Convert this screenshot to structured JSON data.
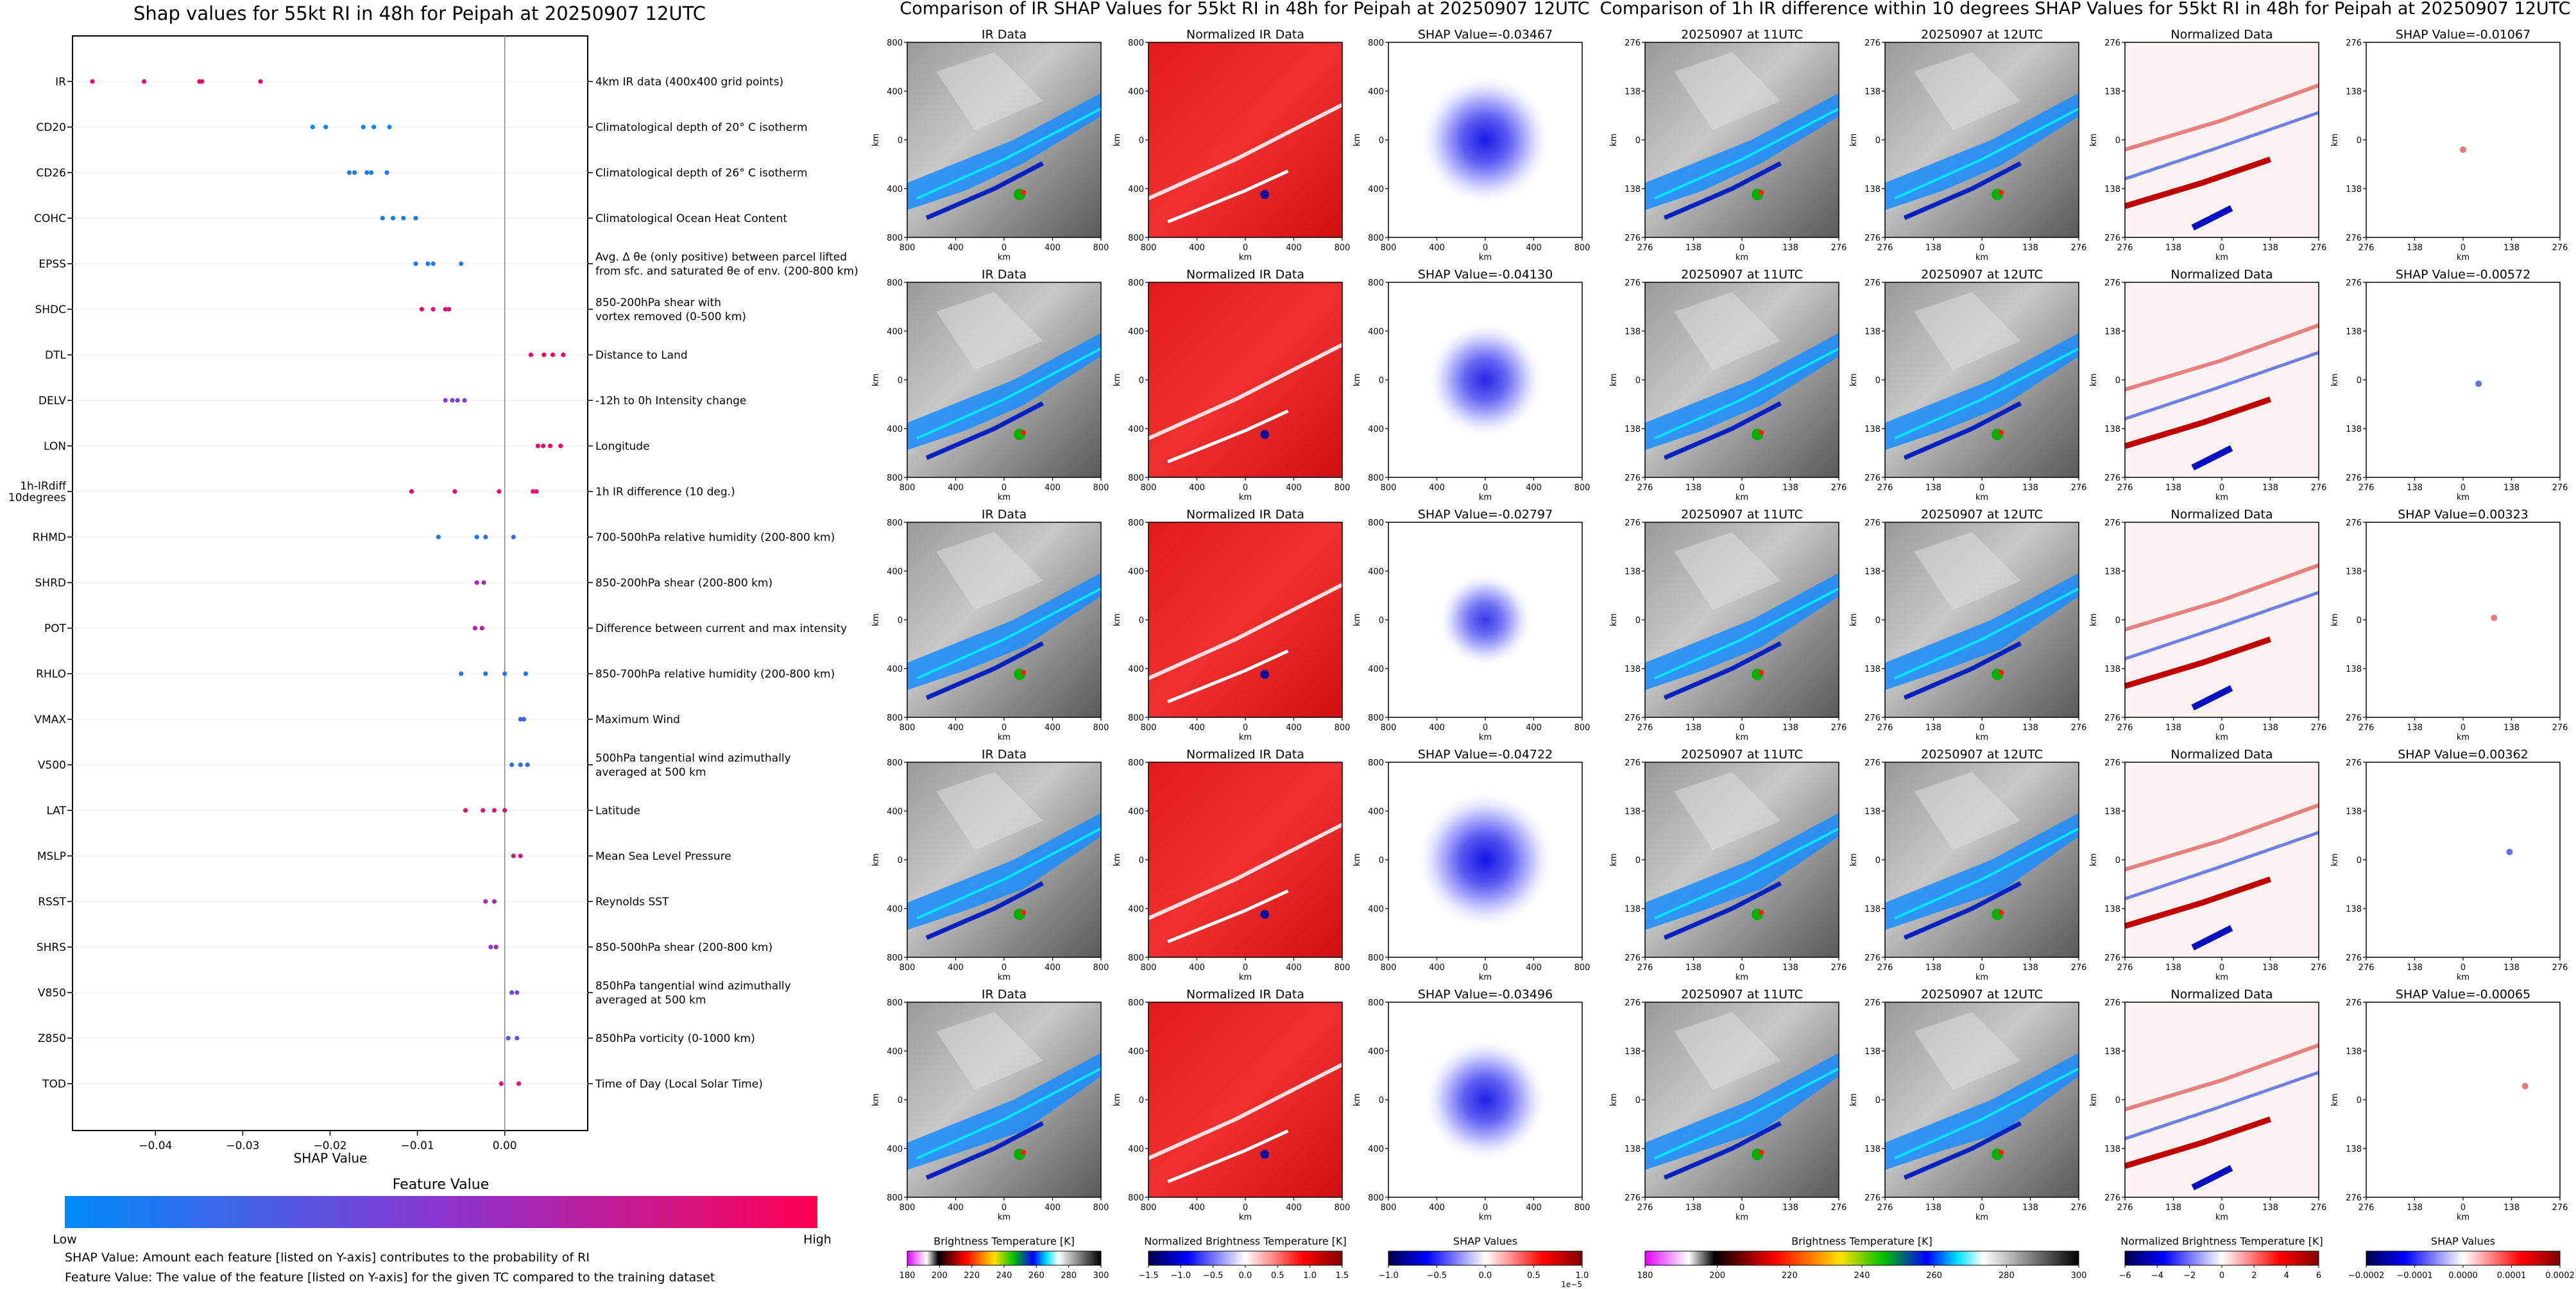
{
  "shap_summary": {
    "title": "Shap values for 55kt RI in 48h for Peipah at 20250907 12UTC",
    "xlabel": "SHAP Value",
    "colorbar_title": "Feature Value",
    "colorbar_low": "Low",
    "colorbar_high": "High",
    "note1": "SHAP Value: Amount each feature [listed on Y-axis] contributes to the probability of RI",
    "note2": "Feature Value: The value of the feature [listed on Y-axis] for the given TC compared to the training dataset",
    "features": [
      {
        "name": "IR",
        "desc": "4km IR data (400x400 grid points)"
      },
      {
        "name": "CD20",
        "desc": "Climatological depth of 20° C isotherm"
      },
      {
        "name": "CD26",
        "desc": "Climatological depth of 26° C isotherm"
      },
      {
        "name": "COHC",
        "desc": "Climatological Ocean Heat Content"
      },
      {
        "name": "EPSS",
        "desc": "Avg. Δ θe (only positive) between parcel lifted|from sfc. and saturated θe of env. (200-800 km)"
      },
      {
        "name": "SHDC",
        "desc": "850-200hPa shear with|vortex removed (0-500 km)"
      },
      {
        "name": "DTL",
        "desc": "Distance to Land"
      },
      {
        "name": "DELV",
        "desc": "-12h to 0h Intensity change"
      },
      {
        "name": "LON",
        "desc": "Longitude"
      },
      {
        "name": "1h-IRdiff|10degrees",
        "desc": "1h IR difference (10 deg.)"
      },
      {
        "name": "RHMD",
        "desc": "700-500hPa relative humidity (200-800 km)"
      },
      {
        "name": "SHRD",
        "desc": "850-200hPa shear (200-800 km)"
      },
      {
        "name": "POT",
        "desc": "Difference between current and max intensity"
      },
      {
        "name": "RHLO",
        "desc": "850-700hPa relative humidity (200-800 km)"
      },
      {
        "name": "VMAX",
        "desc": "Maximum Wind"
      },
      {
        "name": "V500",
        "desc": "500hPa tangential wind azimuthally|averaged at 500 km"
      },
      {
        "name": "LAT",
        "desc": "Latitude"
      },
      {
        "name": "MSLP",
        "desc": "Mean Sea Level Pressure"
      },
      {
        "name": "RSST",
        "desc": "Reynolds SST"
      },
      {
        "name": "SHRS",
        "desc": "850-500hPa shear (200-800 km)"
      },
      {
        "name": "V850",
        "desc": "850hPa tangential wind azimuthally|averaged at 500 km"
      },
      {
        "name": "Z850",
        "desc": "850hPa vorticity (0-1000 km)"
      },
      {
        "name": "TOD",
        "desc": "Time of Day (Local Solar Time)"
      }
    ],
    "xticks": [
      "−0.04",
      "−0.03",
      "−0.02",
      "−0.01",
      "0.00"
    ]
  },
  "chart_data": {
    "type": "scatter",
    "title": "Shap values for 55kt RI in 48h for Peipah at 20250907 12UTC",
    "xlabel": "SHAP Value",
    "xlim": [
      -0.0495,
      0.0095
    ],
    "colormap_low": "#008afb",
    "colormap_mid": "#8a35d0",
    "colormap_high": "#ff0052",
    "points": [
      {
        "feature": "IR",
        "shap": [
          -0.04722,
          -0.0413,
          -0.03496,
          -0.03467,
          -0.02797
        ],
        "feature_value": [
          0.92,
          0.9,
          0.95,
          0.93,
          0.91
        ]
      },
      {
        "feature": "CD20",
        "shap": [
          -0.022,
          -0.0205,
          -0.0162,
          -0.015,
          -0.0132
        ],
        "feature_value": [
          0.05,
          0.05,
          0.05,
          0.05,
          0.05
        ]
      },
      {
        "feature": "CD26",
        "shap": [
          -0.0178,
          -0.0172,
          -0.0158,
          -0.0153,
          -0.0135
        ],
        "feature_value": [
          0.1,
          0.1,
          0.1,
          0.1,
          0.1
        ]
      },
      {
        "feature": "COHC",
        "shap": [
          -0.014,
          -0.0128,
          -0.0116,
          -0.0102
        ],
        "feature_value": [
          0.08,
          0.08,
          0.08,
          0.08
        ]
      },
      {
        "feature": "EPSS",
        "shap": [
          -0.0102,
          -0.0088,
          -0.0082,
          -0.005
        ],
        "feature_value": [
          0.1,
          0.1,
          0.1,
          0.1
        ]
      },
      {
        "feature": "SHDC",
        "shap": [
          -0.0095,
          -0.0082,
          -0.0068,
          -0.0064
        ],
        "feature_value": [
          0.85,
          0.85,
          0.85,
          0.85
        ]
      },
      {
        "feature": "DTL",
        "shap": [
          0.003,
          0.0045,
          0.0055,
          0.0067
        ],
        "feature_value": [
          0.93,
          0.93,
          0.93,
          0.93
        ]
      },
      {
        "feature": "DELV",
        "shap": [
          -0.0068,
          -0.006,
          -0.0054,
          -0.0046
        ],
        "feature_value": [
          0.45,
          0.45,
          0.45,
          0.45
        ]
      },
      {
        "feature": "LON",
        "shap": [
          0.0038,
          0.0044,
          0.0052,
          0.0064
        ],
        "feature_value": [
          0.95,
          0.95,
          0.95,
          0.95
        ]
      },
      {
        "feature": "1h-IRdiff 10degrees",
        "shap": [
          -0.01067,
          -0.00572,
          -0.00065,
          0.00323,
          0.00362
        ],
        "feature_value": [
          0.88,
          0.88,
          0.88,
          0.88,
          0.88
        ]
      },
      {
        "feature": "RHMD",
        "shap": [
          -0.0076,
          -0.0032,
          -0.0022,
          0.001
        ],
        "feature_value": [
          0.15,
          0.15,
          0.15,
          0.15
        ]
      },
      {
        "feature": "SHRD",
        "shap": [
          -0.0032,
          -0.0024
        ],
        "feature_value": [
          0.6,
          0.6
        ]
      },
      {
        "feature": "POT",
        "shap": [
          -0.0034,
          -0.0026
        ],
        "feature_value": [
          0.7,
          0.7
        ]
      },
      {
        "feature": "RHLO",
        "shap": [
          -0.005,
          -0.0022,
          0.0,
          0.0024
        ],
        "feature_value": [
          0.15,
          0.15,
          0.15,
          0.15
        ]
      },
      {
        "feature": "VMAX",
        "shap": [
          0.0018,
          0.0022
        ],
        "feature_value": [
          0.25,
          0.25
        ]
      },
      {
        "feature": "V500",
        "shap": [
          0.0008,
          0.0018,
          0.0026
        ],
        "feature_value": [
          0.2,
          0.2,
          0.2
        ]
      },
      {
        "feature": "LAT",
        "shap": [
          -0.0045,
          -0.0025,
          -0.0012,
          0.0
        ],
        "feature_value": [
          0.85,
          0.85,
          0.85,
          0.85
        ]
      },
      {
        "feature": "MSLP",
        "shap": [
          0.001,
          0.0018
        ],
        "feature_value": [
          0.8,
          0.8
        ]
      },
      {
        "feature": "RSST",
        "shap": [
          -0.0022,
          -0.0012
        ],
        "feature_value": [
          0.65,
          0.65
        ]
      },
      {
        "feature": "SHRS",
        "shap": [
          -0.0016,
          -0.001
        ],
        "feature_value": [
          0.6,
          0.6
        ]
      },
      {
        "feature": "V850",
        "shap": [
          0.0008,
          0.0014
        ],
        "feature_value": [
          0.4,
          0.4
        ]
      },
      {
        "feature": "Z850",
        "shap": [
          0.0004,
          0.0014
        ],
        "feature_value": [
          0.3,
          0.3
        ]
      },
      {
        "feature": "TOD",
        "shap": [
          -0.0004,
          0.0016
        ],
        "feature_value": [
          0.9,
          0.9
        ]
      }
    ]
  },
  "ir_panel": {
    "title": "Comparison of IR SHAP Values for 55kt RI in 48h for Peipah at 20250907 12UTC",
    "col_titles": [
      "IR Data",
      "Normalized IR Data"
    ],
    "shap_titles": [
      "SHAP Value=-0.03467",
      "SHAP Value=-0.04130",
      "SHAP Value=-0.02797",
      "SHAP Value=-0.04722",
      "SHAP Value=-0.03496"
    ],
    "ticks": [
      "800",
      "400",
      "0",
      "400",
      "800"
    ],
    "axis_unit": "km",
    "cb1_label": "Brightness Temperature [K]",
    "cb1_ticks": [
      "180",
      "200",
      "220",
      "240",
      "260",
      "280",
      "300"
    ],
    "cb2_label": "Normalized Brightness Temperature [K]",
    "cb2_ticks": [
      "−1.5",
      "−1.0",
      "−0.5",
      "0.0",
      "0.5",
      "1.0",
      "1.5"
    ],
    "cb3_label": "SHAP Values",
    "cb3_ticks": [
      "−1.0",
      "−0.5",
      "0.0",
      "0.5",
      "1.0"
    ],
    "cb3_exp": "1e−5"
  },
  "diff_panel": {
    "title": "Comparison of 1h IR difference within 10 degrees SHAP Values for 55kt RI in 48h for Peipah at 20250907 12UTC",
    "col_titles": [
      "20250907 at 11UTC",
      "20250907 at 12UTC",
      "Normalized Data"
    ],
    "shap_titles": [
      "SHAP Value=-0.01067",
      "SHAP Value=-0.00572",
      "SHAP Value=0.00323",
      "SHAP Value=0.00362",
      "SHAP Value=-0.00065"
    ],
    "ticks": [
      "276",
      "138",
      "0",
      "138",
      "276"
    ],
    "axis_unit": "km",
    "cb1_label": "Brightness Temperature [K]",
    "cb1_ticks": [
      "180",
      "200",
      "220",
      "240",
      "260",
      "280",
      "300"
    ],
    "cb2_label": "Normalized Brightness Temperature [K]",
    "cb2_ticks": [
      "−6",
      "−4",
      "−2",
      "0",
      "2",
      "4",
      "6"
    ],
    "cb3_label": "SHAP Values",
    "cb3_ticks": [
      "−0.0002",
      "−0.0001",
      "0.0000",
      "0.0001",
      "0.0002"
    ]
  }
}
